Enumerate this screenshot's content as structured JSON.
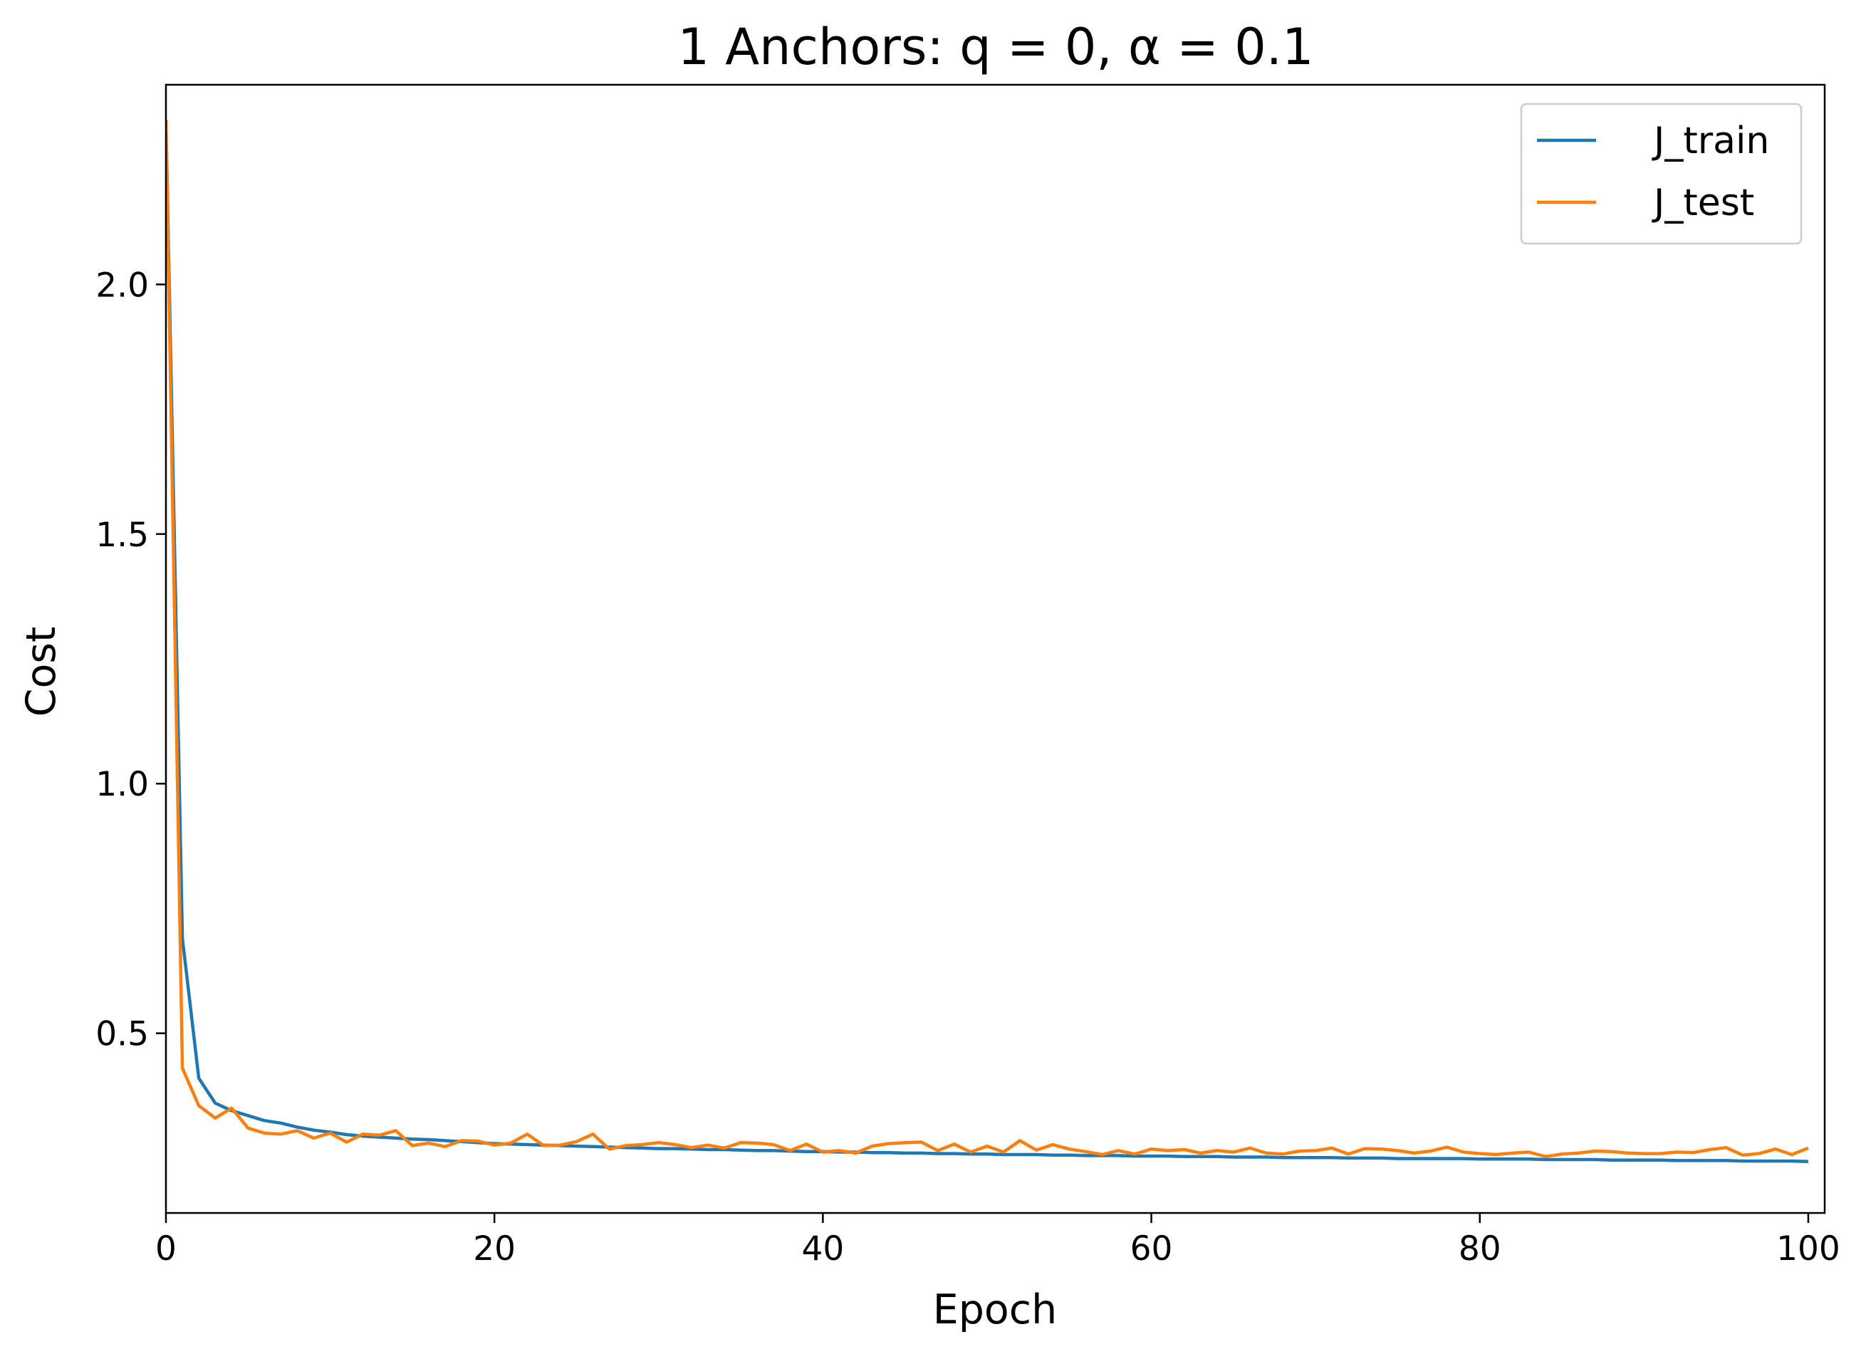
{
  "chart_data": {
    "type": "line",
    "title": "1 Anchors: q = 0, α = 0.1",
    "xlabel": "Epoch",
    "ylabel": "Cost",
    "xlim": [
      0,
      101
    ],
    "ylim": [
      0.14,
      2.4
    ],
    "x_ticks": [
      0,
      20,
      40,
      60,
      80,
      100
    ],
    "y_ticks": [
      0.5,
      1.0,
      1.5,
      2.0
    ],
    "x_tick_labels": [
      "0",
      "20",
      "40",
      "60",
      "80",
      "100"
    ],
    "y_tick_labels": [
      "0.5",
      "1.0",
      "1.5",
      "2.0"
    ],
    "grid": false,
    "legend_position": "top-right",
    "x": [
      0,
      1,
      2,
      3,
      4,
      5,
      6,
      7,
      8,
      9,
      10,
      11,
      12,
      13,
      14,
      15,
      16,
      17,
      18,
      19,
      20,
      21,
      22,
      23,
      24,
      25,
      26,
      27,
      28,
      29,
      30,
      31,
      32,
      33,
      34,
      35,
      36,
      37,
      38,
      39,
      40,
      41,
      42,
      43,
      44,
      45,
      46,
      47,
      48,
      49,
      50,
      51,
      52,
      53,
      54,
      55,
      56,
      57,
      58,
      59,
      60,
      61,
      62,
      63,
      64,
      65,
      66,
      67,
      68,
      69,
      70,
      71,
      72,
      73,
      74,
      75,
      76,
      77,
      78,
      79,
      80,
      81,
      82,
      83,
      84,
      85,
      86,
      87,
      88,
      89,
      90,
      91,
      92,
      93,
      94,
      95,
      96,
      97,
      98,
      99,
      100
    ],
    "series": [
      {
        "name": "J_train",
        "color": "#1f77b4",
        "values": [
          2.33,
          0.69,
          0.41,
          0.36,
          0.345,
          0.335,
          0.325,
          0.32,
          0.312,
          0.306,
          0.302,
          0.297,
          0.294,
          0.292,
          0.29,
          0.288,
          0.287,
          0.285,
          0.283,
          0.281,
          0.279,
          0.278,
          0.277,
          0.276,
          0.275,
          0.274,
          0.273,
          0.272,
          0.271,
          0.27,
          0.269,
          0.269,
          0.268,
          0.267,
          0.267,
          0.266,
          0.265,
          0.265,
          0.264,
          0.263,
          0.263,
          0.262,
          0.262,
          0.261,
          0.261,
          0.26,
          0.26,
          0.259,
          0.259,
          0.258,
          0.258,
          0.257,
          0.257,
          0.257,
          0.256,
          0.256,
          0.255,
          0.255,
          0.255,
          0.254,
          0.254,
          0.254,
          0.253,
          0.253,
          0.253,
          0.252,
          0.252,
          0.252,
          0.251,
          0.251,
          0.251,
          0.251,
          0.25,
          0.25,
          0.25,
          0.249,
          0.249,
          0.249,
          0.249,
          0.249,
          0.248,
          0.248,
          0.248,
          0.248,
          0.247,
          0.247,
          0.247,
          0.247,
          0.246,
          0.246,
          0.246,
          0.246,
          0.245,
          0.245,
          0.245,
          0.245,
          0.244,
          0.244,
          0.244,
          0.244,
          0.243
        ]
      },
      {
        "name": "J_test",
        "color": "#ff7f0e",
        "values": [
          2.33,
          0.43,
          0.355,
          0.33,
          0.35,
          0.31,
          0.3,
          0.298,
          0.305,
          0.29,
          0.3,
          0.282,
          0.298,
          0.296,
          0.305,
          0.275,
          0.28,
          0.273,
          0.285,
          0.284,
          0.276,
          0.28,
          0.298,
          0.275,
          0.276,
          0.283,
          0.298,
          0.268,
          0.275,
          0.277,
          0.281,
          0.277,
          0.271,
          0.276,
          0.27,
          0.281,
          0.28,
          0.277,
          0.265,
          0.278,
          0.262,
          0.265,
          0.26,
          0.274,
          0.279,
          0.281,
          0.282,
          0.265,
          0.278,
          0.262,
          0.274,
          0.262,
          0.285,
          0.266,
          0.277,
          0.268,
          0.263,
          0.257,
          0.265,
          0.258,
          0.268,
          0.265,
          0.267,
          0.26,
          0.265,
          0.262,
          0.27,
          0.26,
          0.258,
          0.264,
          0.265,
          0.27,
          0.258,
          0.269,
          0.268,
          0.265,
          0.26,
          0.264,
          0.272,
          0.262,
          0.259,
          0.257,
          0.26,
          0.262,
          0.253,
          0.258,
          0.26,
          0.264,
          0.263,
          0.26,
          0.259,
          0.259,
          0.262,
          0.261,
          0.267,
          0.271,
          0.256,
          0.259,
          0.268,
          0.257,
          0.27
        ]
      }
    ]
  }
}
